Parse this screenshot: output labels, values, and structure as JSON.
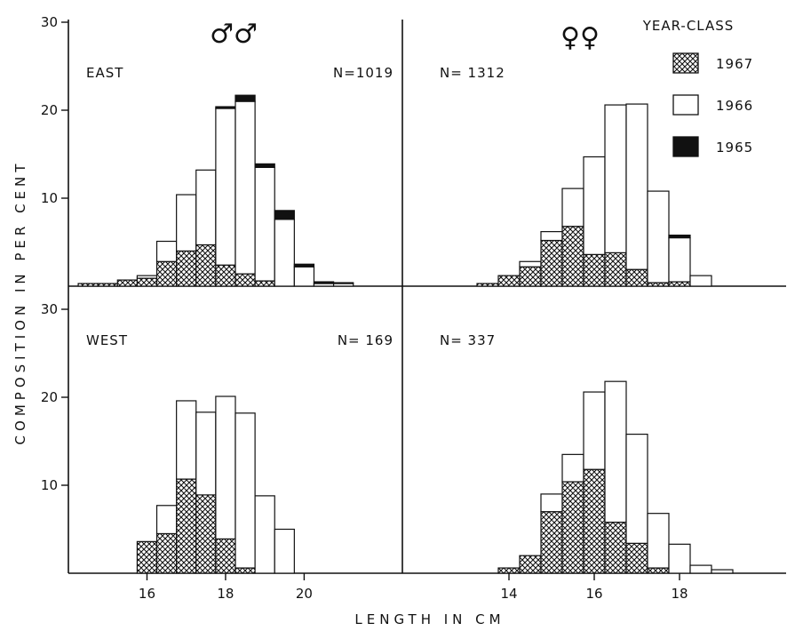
{
  "chart_data": {
    "type": "bar",
    "stacked": true,
    "xlabel": "LENGTH IN CM",
    "ylabel": "COMPOSITION IN PER CENT",
    "ylim": [
      0,
      30
    ],
    "y_ticks": [
      "10",
      "20",
      "30"
    ],
    "legend": {
      "title": "YEAR-CLASS",
      "placement": "top-right",
      "entries": [
        {
          "label": "1967",
          "fill": "crosshatch"
        },
        {
          "label": "1966",
          "fill": "white"
        },
        {
          "label": "1965",
          "fill": "black"
        }
      ]
    },
    "sex_symbols": {
      "males": "♂♂",
      "females": "♀♀"
    },
    "series_order": [
      "1967",
      "1966",
      "1965"
    ],
    "panels": [
      {
        "id": "males-east",
        "region": "EAST",
        "n_label": "N=1019",
        "x_start": 14.25,
        "bin_width": 0.5,
        "xlim": [
          14,
          22.5
        ],
        "x_ticks": [
          "16",
          "18",
          "20"
        ],
        "bars": [
          [
            0.3,
            0,
            0
          ],
          [
            0.3,
            0,
            0
          ],
          [
            0.7,
            0,
            0
          ],
          [
            0.9,
            0.3,
            0
          ],
          [
            2.8,
            2.3,
            0
          ],
          [
            4.0,
            6.4,
            0
          ],
          [
            4.7,
            8.5,
            0
          ],
          [
            2.4,
            17.8,
            0.2
          ],
          [
            1.4,
            19.6,
            0.7
          ],
          [
            0.6,
            12.9,
            0.4
          ],
          [
            0,
            7.6,
            1.0
          ],
          [
            0,
            2.2,
            0.3
          ],
          [
            0,
            0.3,
            0.2
          ],
          [
            0,
            0.3,
            0.1
          ]
        ]
      },
      {
        "id": "females-east",
        "region": "",
        "n_label": "N= 1312",
        "x_start": 13.25,
        "bin_width": 0.5,
        "xlim": [
          11.5,
          20.5
        ],
        "x_ticks": [
          "14",
          "16",
          "18"
        ],
        "bars": [
          [
            0.3,
            0,
            0
          ],
          [
            1.2,
            0,
            0
          ],
          [
            2.2,
            0.6,
            0
          ],
          [
            5.2,
            1.0,
            0
          ],
          [
            6.8,
            4.3,
            0
          ],
          [
            3.6,
            11.1,
            0
          ],
          [
            3.8,
            16.8,
            0
          ],
          [
            1.9,
            18.8,
            0
          ],
          [
            0.4,
            10.4,
            0
          ],
          [
            0.5,
            5.0,
            0.3
          ],
          [
            0,
            1.2,
            0
          ]
        ]
      },
      {
        "id": "males-west",
        "region": "WEST",
        "n_label": "N= 169",
        "x_start": 15.75,
        "bin_width": 0.5,
        "xlim": [
          14,
          22.5
        ],
        "x_ticks": [
          "16",
          "18",
          "20"
        ],
        "bars": [
          [
            3.6,
            0,
            0
          ],
          [
            4.5,
            3.2,
            0
          ],
          [
            10.7,
            8.9,
            0
          ],
          [
            8.9,
            9.4,
            0
          ],
          [
            3.9,
            16.2,
            0
          ],
          [
            0.6,
            17.6,
            0
          ],
          [
            0,
            8.8,
            0
          ],
          [
            0,
            5.0,
            0
          ]
        ]
      },
      {
        "id": "females-west",
        "region": "",
        "n_label": "N= 337",
        "x_start": 13.75,
        "bin_width": 0.5,
        "xlim": [
          11.5,
          20.5
        ],
        "x_ticks": [
          "14",
          "16",
          "18"
        ],
        "bars": [
          [
            0.6,
            0,
            0
          ],
          [
            2.0,
            0,
            0
          ],
          [
            7.0,
            2.0,
            0
          ],
          [
            10.4,
            3.1,
            0
          ],
          [
            11.8,
            8.8,
            0
          ],
          [
            5.8,
            16.0,
            0
          ],
          [
            3.4,
            12.4,
            0
          ],
          [
            0.6,
            6.2,
            0
          ],
          [
            0,
            3.3,
            0
          ],
          [
            0,
            0.9,
            0
          ],
          [
            0,
            0.4,
            0
          ]
        ]
      }
    ]
  }
}
